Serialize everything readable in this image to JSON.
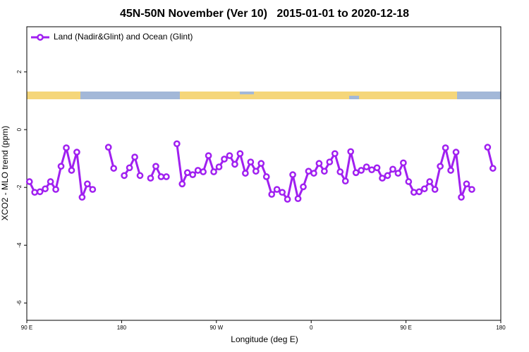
{
  "chart_data": {
    "type": "line",
    "title": "45N-50N November (Ver 10)   2015-01-01 to 2020-12-18",
    "x_label": "Longitude (deg E)",
    "y_label": "XCO2 - MLO trend (ppm)",
    "x": [
      92.5,
      97.5,
      102.5,
      107.5,
      112.5,
      117.5,
      122.5,
      127.5,
      132.5,
      137.5,
      142.5,
      147.5,
      152.5,
      157.5,
      162.5,
      167.5,
      172.5,
      177.5,
      182.5,
      187.5,
      192.5,
      197.5,
      202.5,
      207.5,
      212.5,
      217.5,
      222.5,
      227.5,
      232.5,
      237.5,
      242.5,
      247.5,
      252.5,
      257.5,
      262.5,
      267.5,
      272.5,
      277.5,
      282.5,
      287.5,
      292.5,
      297.5,
      302.5,
      307.5,
      312.5,
      317.5,
      322.5,
      327.5,
      332.5,
      337.5,
      342.5,
      347.5,
      352.5,
      357.5,
      362.5,
      367.5,
      372.5,
      377.5,
      382.5,
      387.5,
      392.5,
      397.5,
      402.5,
      407.5,
      412.5,
      417.5,
      422.5,
      427.5,
      432.5,
      437.5,
      442.5,
      447.5,
      452.5,
      457.5,
      462.5,
      467.5,
      472.5,
      477.5,
      482.5,
      487.5,
      492.5,
      497.5,
      502.5,
      507.5,
      512.5,
      517.5,
      522.5,
      527.5,
      532.5,
      537.5
    ],
    "series": [
      {
        "name": "Land (Nadir&Glint) and Ocean (Glint)",
        "color": "#a020f0",
        "values": [
          -1.8,
          -2.17,
          -2.15,
          -2.05,
          -1.8,
          -2.07,
          -1.27,
          -0.63,
          -1.41,
          -0.78,
          -2.34,
          -1.88,
          -2.07,
          null,
          null,
          -0.61,
          -1.34,
          null,
          -1.59,
          -1.32,
          -0.95,
          -1.59,
          null,
          -1.68,
          -1.27,
          -1.63,
          -1.63,
          null,
          -0.49,
          -1.88,
          -1.49,
          -1.56,
          -1.41,
          -1.46,
          -0.9,
          -1.46,
          -1.29,
          -1.02,
          -0.9,
          -1.2,
          -0.83,
          -1.51,
          -1.12,
          -1.44,
          -1.17,
          -1.63,
          -2.24,
          -2.07,
          -2.17,
          -2.41,
          -1.56,
          -2.39,
          -1.98,
          -1.44,
          -1.51,
          -1.17,
          -1.44,
          -1.12,
          -0.83,
          -1.46,
          -1.78,
          -0.76,
          -1.49,
          -1.41,
          -1.29,
          -1.39,
          -1.32,
          -1.68,
          -1.59,
          -1.37,
          -1.51,
          -1.15,
          -1.8,
          -2.17,
          -2.15,
          -2.05,
          -1.8,
          -2.07,
          -1.27,
          -0.63,
          -1.41,
          -0.78,
          -2.34,
          -1.88,
          -2.07,
          null,
          null,
          -0.61,
          -1.34,
          null
        ]
      }
    ],
    "xlim": [
      90,
      540
    ],
    "xticks": [
      {
        "value": 90,
        "label": "90 E"
      },
      180,
      {
        "value": 270,
        "label": "90 W"
      },
      {
        "value": 360,
        "label": "0"
      },
      {
        "value": 450,
        "label": "90 E"
      },
      {
        "value": 540,
        "label": "180"
      }
    ],
    "ylim": [
      -6.6,
      3.56
    ],
    "yticks": [
      2,
      0,
      -2,
      -4,
      -6
    ],
    "legend": "top-left",
    "grid": false
  }
}
